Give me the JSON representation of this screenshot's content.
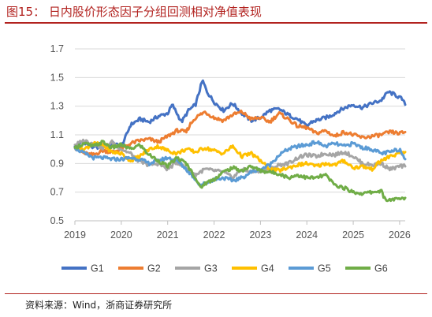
{
  "title": "图15：  日内股价形态因子分组回测相对净值表现",
  "source": "资料来源：Wind，浙商证券研究所",
  "chart_data": {
    "type": "line",
    "ylim": [
      0.5,
      1.7
    ],
    "yticks": [
      "0.5",
      "0.7",
      "0.9",
      "1.1",
      "1.3",
      "1.5",
      "1.7"
    ],
    "xlim": [
      2019.0,
      2026.12
    ],
    "xticks": [
      "2019",
      "2020",
      "2021",
      "2022",
      "2023",
      "2024",
      "2025",
      "2026"
    ],
    "grid": "horizontal",
    "legend_position": "bottom",
    "series": [
      {
        "name": "G1",
        "color": "#4472c4",
        "x": [
          2019.0,
          2019.2,
          2019.4,
          2019.6,
          2019.8,
          2020.0,
          2020.1,
          2020.2,
          2020.4,
          2020.6,
          2020.8,
          2021.0,
          2021.1,
          2021.3,
          2021.45,
          2021.6,
          2021.75,
          2021.85,
          2022.0,
          2022.2,
          2022.4,
          2022.6,
          2022.8,
          2023.0,
          2023.2,
          2023.4,
          2023.6,
          2023.8,
          2024.0,
          2024.1,
          2024.3,
          2024.5,
          2024.7,
          2024.9,
          2025.0,
          2025.2,
          2025.4,
          2025.6,
          2025.75,
          2025.9,
          2026.05,
          2026.12
        ],
        "y": [
          1.02,
          1.05,
          1.01,
          1.02,
          1.04,
          1.02,
          1.09,
          1.17,
          1.21,
          1.19,
          1.23,
          1.25,
          1.31,
          1.19,
          1.27,
          1.31,
          1.48,
          1.4,
          1.33,
          1.27,
          1.32,
          1.25,
          1.2,
          1.22,
          1.27,
          1.28,
          1.24,
          1.21,
          1.16,
          1.19,
          1.21,
          1.23,
          1.27,
          1.3,
          1.31,
          1.29,
          1.32,
          1.34,
          1.4,
          1.38,
          1.35,
          1.31
        ]
      },
      {
        "name": "G2",
        "color": "#ed7d31",
        "x": [
          2019.0,
          2019.2,
          2019.4,
          2019.6,
          2019.8,
          2020.0,
          2020.2,
          2020.4,
          2020.6,
          2020.8,
          2021.0,
          2021.2,
          2021.4,
          2021.5,
          2021.6,
          2021.8,
          2022.0,
          2022.2,
          2022.4,
          2022.6,
          2022.8,
          2023.0,
          2023.2,
          2023.4,
          2023.6,
          2023.8,
          2024.0,
          2024.2,
          2024.4,
          2024.6,
          2024.8,
          2025.0,
          2025.2,
          2025.4,
          2025.6,
          2025.8,
          2026.0,
          2026.12
        ],
        "y": [
          1.01,
          0.97,
          0.96,
          0.99,
          0.98,
          1.0,
          1.04,
          1.06,
          1.07,
          1.05,
          1.09,
          1.13,
          1.12,
          1.18,
          1.22,
          1.26,
          1.22,
          1.2,
          1.24,
          1.26,
          1.21,
          1.22,
          1.19,
          1.25,
          1.21,
          1.16,
          1.15,
          1.11,
          1.13,
          1.09,
          1.12,
          1.1,
          1.08,
          1.09,
          1.1,
          1.12,
          1.11,
          1.12
        ]
      },
      {
        "name": "G3",
        "color": "#a5a5a5",
        "x": [
          2019.0,
          2019.2,
          2019.4,
          2019.6,
          2019.8,
          2020.0,
          2020.2,
          2020.4,
          2020.6,
          2020.8,
          2021.0,
          2021.2,
          2021.4,
          2021.6,
          2021.8,
          2022.0,
          2022.2,
          2022.4,
          2022.6,
          2022.8,
          2023.0,
          2023.2,
          2023.4,
          2023.6,
          2023.8,
          2024.0,
          2024.2,
          2024.4,
          2024.6,
          2024.8,
          2025.0,
          2025.2,
          2025.4,
          2025.6,
          2025.8,
          2026.0,
          2026.12
        ],
        "y": [
          1.03,
          1.06,
          1.04,
          1.01,
          1.05,
          1.0,
          0.97,
          0.91,
          0.89,
          0.9,
          0.86,
          0.91,
          0.87,
          0.82,
          0.86,
          0.85,
          0.84,
          0.8,
          0.86,
          0.84,
          0.85,
          0.86,
          0.89,
          0.9,
          0.94,
          0.96,
          0.95,
          0.97,
          0.96,
          0.98,
          0.95,
          0.9,
          0.89,
          0.9,
          0.86,
          0.88,
          0.88
        ]
      },
      {
        "name": "G4",
        "color": "#ffc000",
        "x": [
          2019.0,
          2019.2,
          2019.4,
          2019.6,
          2019.8,
          2020.0,
          2020.2,
          2020.4,
          2020.6,
          2020.8,
          2021.0,
          2021.2,
          2021.4,
          2021.6,
          2021.8,
          2022.0,
          2022.2,
          2022.4,
          2022.6,
          2022.8,
          2023.0,
          2023.2,
          2023.4,
          2023.6,
          2023.8,
          2024.0,
          2024.2,
          2024.4,
          2024.6,
          2024.8,
          2025.0,
          2025.2,
          2025.4,
          2025.6,
          2025.8,
          2026.0,
          2026.12
        ],
        "y": [
          1.01,
          1.0,
          1.04,
          1.03,
          0.98,
          0.97,
          0.92,
          0.95,
          1.0,
          1.02,
          0.99,
          0.97,
          1.0,
          0.98,
          1.01,
          0.99,
          0.97,
          1.02,
          0.95,
          0.97,
          0.92,
          0.86,
          0.85,
          0.87,
          0.89,
          0.9,
          0.88,
          0.9,
          0.89,
          0.92,
          0.87,
          0.88,
          0.86,
          0.92,
          0.95,
          0.97,
          0.98
        ]
      },
      {
        "name": "G5",
        "color": "#5b9bd5",
        "x": [
          2019.0,
          2019.2,
          2019.4,
          2019.6,
          2019.8,
          2020.0,
          2020.2,
          2020.4,
          2020.6,
          2020.8,
          2021.0,
          2021.2,
          2021.4,
          2021.6,
          2021.7,
          2021.8,
          2022.0,
          2022.2,
          2022.4,
          2022.6,
          2022.8,
          2023.0,
          2023.2,
          2023.4,
          2023.6,
          2023.8,
          2024.0,
          2024.2,
          2024.4,
          2024.6,
          2024.8,
          2025.0,
          2025.2,
          2025.4,
          2025.6,
          2025.8,
          2026.0,
          2026.12
        ],
        "y": [
          1.01,
          0.97,
          0.94,
          0.94,
          0.93,
          0.93,
          0.94,
          0.93,
          0.9,
          0.92,
          0.94,
          0.92,
          0.86,
          0.79,
          0.75,
          0.76,
          0.79,
          0.8,
          0.78,
          0.8,
          0.84,
          0.86,
          0.89,
          0.96,
          1.0,
          1.02,
          1.03,
          1.05,
          1.02,
          1.04,
          1.02,
          1.04,
          1.01,
          1.0,
          0.97,
          0.98,
          1.0,
          0.93
        ]
      },
      {
        "name": "G6",
        "color": "#70ad47",
        "x": [
          2019.0,
          2019.2,
          2019.4,
          2019.6,
          2019.8,
          2020.0,
          2020.2,
          2020.4,
          2020.6,
          2020.8,
          2021.0,
          2021.2,
          2021.4,
          2021.6,
          2021.7,
          2021.8,
          2022.0,
          2022.2,
          2022.4,
          2022.6,
          2022.8,
          2023.0,
          2023.2,
          2023.4,
          2023.6,
          2023.8,
          2024.0,
          2024.2,
          2024.4,
          2024.6,
          2024.8,
          2025.0,
          2025.2,
          2025.4,
          2025.6,
          2025.7,
          2025.8,
          2026.0,
          2026.12
        ],
        "y": [
          1.01,
          1.04,
          1.02,
          1.05,
          1.01,
          1.03,
          1.0,
          1.03,
          0.96,
          0.92,
          0.88,
          0.94,
          0.9,
          0.8,
          0.73,
          0.76,
          0.79,
          0.84,
          0.87,
          0.85,
          0.88,
          0.85,
          0.84,
          0.83,
          0.8,
          0.82,
          0.8,
          0.8,
          0.82,
          0.75,
          0.73,
          0.7,
          0.69,
          0.7,
          0.71,
          0.64,
          0.65,
          0.65,
          0.66
        ]
      }
    ]
  }
}
